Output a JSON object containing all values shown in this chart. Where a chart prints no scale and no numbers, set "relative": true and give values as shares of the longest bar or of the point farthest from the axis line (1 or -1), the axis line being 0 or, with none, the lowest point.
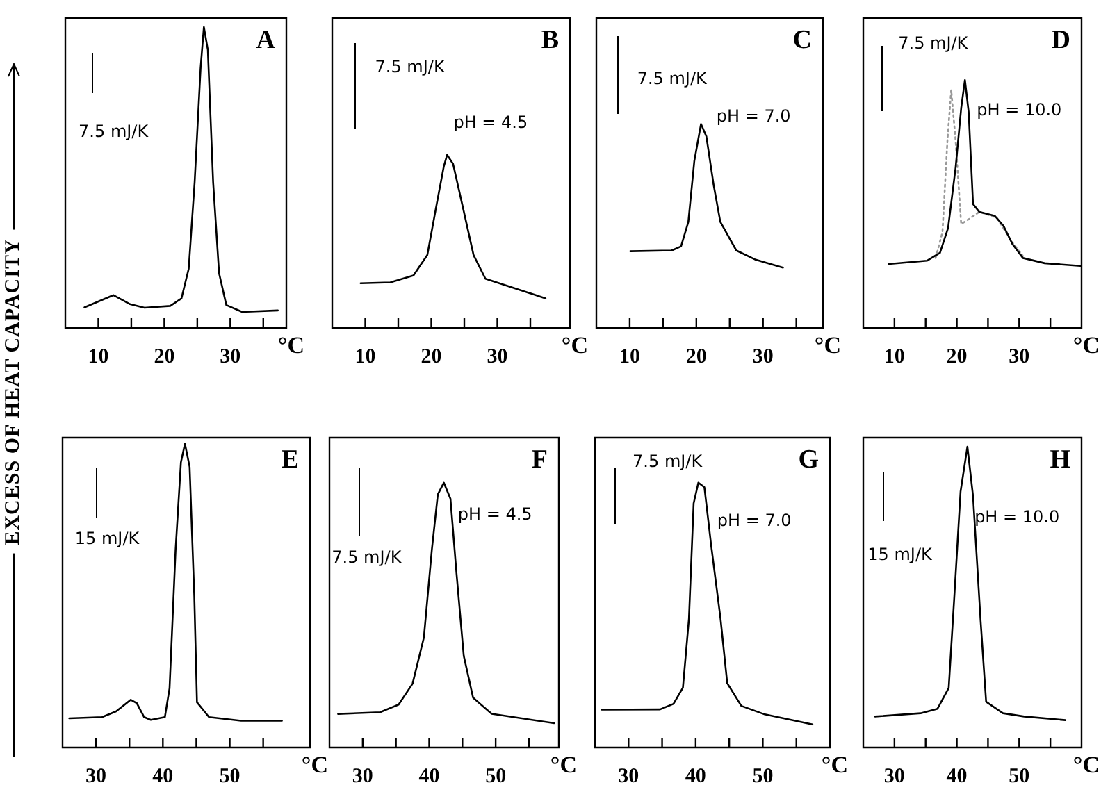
{
  "chart_data": [
    {
      "type": "line",
      "title": "A",
      "xlabel": "°C",
      "ylabel": "EXCESS OF HEAT CAPACITY",
      "relative": true,
      "xlim": [
        5,
        38.5
      ],
      "xticks": [
        10,
        {
          "value": 15,
          "label": null
        },
        20,
        {
          "value": 25,
          "label": null
        },
        30,
        {
          "value": 35,
          "label": null
        }
      ],
      "annotations": [
        "7.5 mJ/K"
      ],
      "series": [
        {
          "color": "#000000",
          "x": [
            7.9,
            12.3,
            14.8,
            17.0,
            20.9,
            22.6,
            23.7,
            24.6,
            25.5,
            26.0,
            26.6,
            27.4,
            28.3,
            29.4,
            31.8,
            37.2
          ],
          "values": [
            0.068,
            0.109,
            0.079,
            0.067,
            0.073,
            0.098,
            0.197,
            0.485,
            0.864,
            1,
            0.924,
            0.485,
            0.182,
            0.076,
            0.053,
            0.058
          ]
        }
      ]
    },
    {
      "type": "line",
      "title": "B",
      "xlabel": "°C",
      "relative": true,
      "xlim": [
        5,
        41
      ],
      "xticks": [
        10,
        {
          "value": 15,
          "label": null
        },
        20,
        {
          "value": 25,
          "label": null
        },
        30,
        {
          "value": 35,
          "label": null
        }
      ],
      "annotations": [
        "7.5 mJ/K",
        "pH = 4.5"
      ],
      "series": [
        {
          "color": "#000000",
          "x": [
            9.3,
            13.8,
            17.3,
            19.4,
            20.8,
            21.9,
            22.4,
            23.3,
            24.7,
            26.4,
            28.2,
            32.0,
            37.3
          ],
          "values": [
            0.258,
            0.263,
            0.303,
            0.421,
            0.711,
            0.934,
            1,
            0.947,
            0.711,
            0.421,
            0.284,
            0.237,
            0.171
          ]
        }
      ]
    },
    {
      "type": "line",
      "title": "C",
      "xlabel": "°C",
      "relative": true,
      "xlim": [
        5,
        39
      ],
      "xticks": [
        10,
        {
          "value": 15,
          "label": null
        },
        20,
        {
          "value": 25,
          "label": null
        },
        30,
        {
          "value": 35,
          "label": null
        }
      ],
      "annotations": [
        "7.5 mJ/K",
        "pH = 7.0"
      ],
      "series": [
        {
          "color": "#000000",
          "x": [
            10.1,
            16.3,
            17.7,
            18.8,
            19.7,
            20.7,
            21.5,
            22.6,
            23.6,
            26.0,
            28.8,
            33.0
          ],
          "values": [
            0.376,
            0.38,
            0.4,
            0.52,
            0.82,
            1,
            0.94,
            0.7,
            0.52,
            0.38,
            0.336,
            0.296
          ]
        }
      ]
    },
    {
      "type": "line",
      "title": "D",
      "xlabel": "°C",
      "relative": true,
      "xlim": [
        5,
        40
      ],
      "xticks": [
        10,
        {
          "value": 15,
          "label": null
        },
        20,
        {
          "value": 25,
          "label": null
        },
        30,
        {
          "value": 35,
          "label": null
        }
      ],
      "annotations": [
        "7.5 mJ/K",
        "pH = 10.0"
      ],
      "series": [
        {
          "color": "#000000",
          "x": [
            9.1,
            15.2,
            17.3,
            18.6,
            19.8,
            20.7,
            21.3,
            21.9,
            22.6,
            23.6,
            26.1,
            27.5,
            28.9,
            30.6,
            34.1,
            39.8
          ],
          "values": [
            0.258,
            0.271,
            0.303,
            0.403,
            0.645,
            0.887,
            1,
            0.871,
            0.5,
            0.468,
            0.452,
            0.411,
            0.339,
            0.282,
            0.261,
            0.25
          ]
        },
        {
          "color": "#999999",
          "line_style": "dotted",
          "x": [
            16.6,
            17.7,
            18.5,
            19.1,
            19.8,
            20.7,
            22.0,
            23.6,
            26.4,
            28.9,
            30.6
          ],
          "values": [
            0.282,
            0.387,
            0.758,
            0.96,
            0.758,
            0.419,
            0.44,
            0.468,
            0.445,
            0.345,
            0.29
          ]
        }
      ]
    },
    {
      "type": "line",
      "title": "E",
      "xlabel": "°C",
      "relative": true,
      "xlim": [
        25,
        62
      ],
      "xticks": [
        30,
        {
          "value": 35,
          "label": null
        },
        40,
        {
          "value": 45,
          "label": null
        },
        50,
        {
          "value": 55,
          "label": null
        }
      ],
      "annotations": [
        "15 mJ/K"
      ],
      "series": [
        {
          "color": "#000000",
          "x": [
            26.0,
            30.9,
            33.0,
            35.2,
            36.1,
            37.2,
            38.2,
            40.3,
            41.0,
            41.9,
            42.7,
            43.3,
            44.0,
            44.7,
            45.1,
            46.9,
            51.7,
            57.8
          ],
          "values": [
            0.096,
            0.1,
            0.119,
            0.157,
            0.146,
            0.1,
            0.091,
            0.1,
            0.195,
            0.65,
            0.939,
            1,
            0.924,
            0.498,
            0.149,
            0.1,
            0.088,
            0.088
          ]
        }
      ]
    },
    {
      "type": "line",
      "title": "F",
      "xlabel": "°C",
      "relative": true,
      "xlim": [
        25,
        59.5
      ],
      "xticks": [
        30,
        {
          "value": 35,
          "label": null
        },
        40,
        {
          "value": 45,
          "label": null
        },
        50,
        {
          "value": 55,
          "label": null
        }
      ],
      "annotations": [
        "7.5 mJ/K",
        "pH = 4.5"
      ],
      "series": [
        {
          "color": "#000000",
          "x": [
            26.3,
            32.6,
            35.4,
            37.5,
            39.2,
            40.4,
            41.3,
            42.2,
            43.2,
            44.1,
            45.2,
            46.6,
            49.4,
            58.8
          ],
          "values": [
            0.127,
            0.133,
            0.162,
            0.241,
            0.415,
            0.747,
            0.956,
            1,
            0.939,
            0.66,
            0.346,
            0.188,
            0.127,
            0.092
          ]
        }
      ]
    },
    {
      "type": "line",
      "title": "G",
      "xlabel": "°C",
      "relative": true,
      "xlim": [
        25,
        60
      ],
      "xticks": [
        30,
        {
          "value": 35,
          "label": null
        },
        40,
        {
          "value": 45,
          "label": null
        },
        50,
        {
          "value": 55,
          "label": null
        }
      ],
      "annotations": [
        "7.5 mJ/K",
        "pH = 7.0"
      ],
      "series": [
        {
          "color": "#000000",
          "x": [
            26.0,
            34.7,
            36.7,
            38.1,
            39.0,
            39.7,
            40.4,
            41.3,
            42.3,
            43.7,
            44.7,
            46.8,
            50.3,
            57.4
          ],
          "values": [
            0.143,
            0.144,
            0.165,
            0.226,
            0.487,
            0.922,
            1,
            0.983,
            0.765,
            0.487,
            0.243,
            0.157,
            0.125,
            0.087
          ]
        }
      ]
    },
    {
      "type": "line",
      "title": "H",
      "xlabel": "°C",
      "relative": true,
      "xlim": [
        25,
        60
      ],
      "xticks": [
        30,
        {
          "value": 35,
          "label": null
        },
        40,
        {
          "value": 45,
          "label": null
        },
        50,
        {
          "value": 55,
          "label": null
        }
      ],
      "annotations": [
        "15 mJ/K",
        "pH = 10.0"
      ],
      "series": [
        {
          "color": "#000000",
          "x": [
            26.9,
            34.2,
            36.9,
            38.7,
            39.6,
            40.6,
            41.7,
            42.6,
            43.8,
            44.7,
            47.4,
            50.8,
            57.4
          ],
          "values": [
            0.103,
            0.114,
            0.129,
            0.198,
            0.502,
            0.851,
            1,
            0.836,
            0.426,
            0.152,
            0.114,
            0.103,
            0.091
          ]
        }
      ]
    }
  ]
}
